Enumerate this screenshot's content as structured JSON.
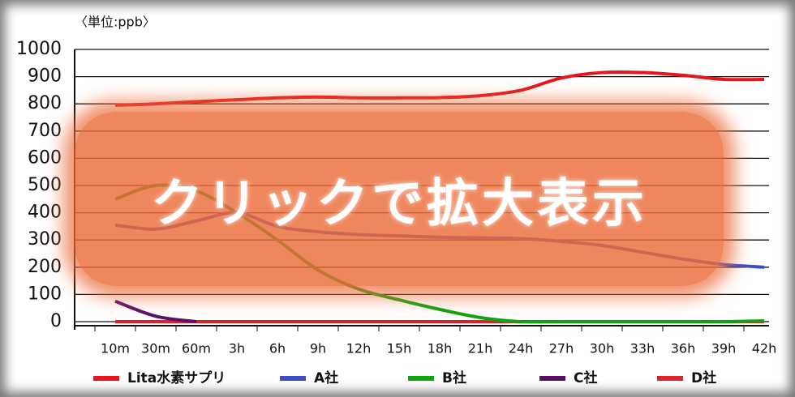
{
  "chart_data": {
    "type": "line",
    "unit_label": "〈単位:ppb〉",
    "overlay_text": "クリックで拡大表示",
    "categories": [
      "10m",
      "30m",
      "60m",
      "3h",
      "6h",
      "9h",
      "12h",
      "15h",
      "18h",
      "21h",
      "24h",
      "27h",
      "30h",
      "33h",
      "36h",
      "39h",
      "42h"
    ],
    "ylim": [
      0,
      1000
    ],
    "yticks": [
      0,
      100,
      200,
      300,
      400,
      500,
      600,
      700,
      800,
      900,
      1000
    ],
    "grid": true,
    "series": [
      {
        "name": "Lita水素サプリ",
        "color": "#e8141b",
        "values": [
          795,
          800,
          808,
          815,
          822,
          825,
          822,
          822,
          823,
          830,
          850,
          895,
          915,
          915,
          905,
          890,
          890
        ]
      },
      {
        "name": "A社",
        "color": "#3a4fc4",
        "values": [
          355,
          340,
          370,
          400,
          350,
          330,
          320,
          315,
          310,
          308,
          305,
          295,
          280,
          255,
          230,
          210,
          200
        ]
      },
      {
        "name": "B社",
        "color": "#0fa30f",
        "values": [
          450,
          500,
          480,
          400,
          300,
          190,
          120,
          80,
          45,
          15,
          0,
          0,
          0,
          0,
          0,
          0,
          3
        ]
      },
      {
        "name": "C社",
        "color": "#5a0f6b",
        "values": [
          75,
          20,
          0,
          null,
          null,
          null,
          null,
          null,
          null,
          null,
          null,
          null,
          null,
          null,
          null,
          null,
          null
        ]
      },
      {
        "name": "D社",
        "color": "#d9252a",
        "values": [
          0,
          0,
          0,
          0,
          0,
          0,
          0,
          0,
          0,
          0,
          0,
          0,
          0,
          0,
          0,
          0,
          0
        ]
      }
    ]
  }
}
